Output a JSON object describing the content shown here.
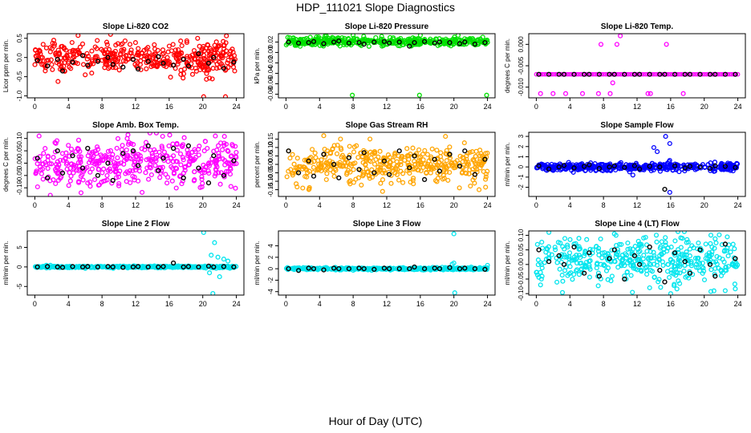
{
  "figure": {
    "title": "HDP_111021  Slope Diagnostics",
    "xlabel": "Hour of Day (UTC)"
  },
  "chart_data": [
    {
      "type": "scatter",
      "title": "Slope Li-820 CO2",
      "ylabel": "Licor ppm per min.",
      "color": "#ff0000",
      "xlim": [
        -0.9,
        24.9
      ],
      "xticks": [
        0,
        4,
        8,
        12,
        16,
        20,
        24
      ],
      "ylim": [
        -1.05,
        0.62
      ],
      "yticks": [
        -1.0,
        -0.5,
        0.0,
        0.5
      ],
      "yticklabels": [
        "-1.0",
        "-0.5",
        "0.0",
        "0.5"
      ],
      "center": 0.0,
      "spread": 0.22,
      "hourly_black": [
        -0.08,
        -0.22,
        -0.05,
        -0.35,
        -0.12,
        0.05,
        -0.2,
        -0.1,
        0.0,
        -0.18,
        -0.25,
        -0.05,
        -0.3,
        -0.1,
        0.02,
        -0.15,
        -0.2,
        -0.05,
        -0.22,
        0.1,
        -0.15,
        0.0,
        -0.28,
        -0.12,
        -0.18
      ],
      "outliers": [
        [
          20.1,
          -1.02
        ],
        [
          22.7,
          -1.02
        ],
        [
          23.8,
          -0.35
        ],
        [
          6.0,
          -0.45
        ]
      ]
    },
    {
      "type": "scatter",
      "title": "Slope Li-820 Pressure",
      "ylabel": "kPa per min.",
      "color": "#00e000",
      "xlim": [
        -0.9,
        24.9
      ],
      "xticks": [
        0,
        4,
        8,
        12,
        16,
        20,
        24
      ],
      "ylim": [
        -0.087,
        0.036
      ],
      "yticks": [
        -0.08,
        -0.06,
        -0.04,
        -0.02,
        0.0,
        0.02
      ],
      "yticklabels": [
        "-0.08",
        "-0.06",
        "-0.04",
        "-0.02",
        "0.00",
        "0.02"
      ],
      "center": 0.021,
      "spread": 0.004,
      "hourly_black": [
        0.02,
        0.018,
        0.019,
        0.021,
        0.017,
        0.02,
        0.022,
        0.018,
        0.019,
        0.016,
        0.02,
        0.021,
        0.018,
        0.02,
        0.012,
        0.019,
        0.021,
        0.018,
        0.02,
        0.019,
        0.017,
        0.02,
        0.016,
        0.019,
        0.018
      ],
      "outliers": [
        [
          7.9,
          -0.082
        ],
        [
          15.9,
          -0.082
        ],
        [
          23.9,
          -0.082
        ],
        [
          8.0,
          0.033
        ],
        [
          16.0,
          0.033
        ],
        [
          20.5,
          0.033
        ]
      ]
    },
    {
      "type": "scatter",
      "title": "Slope Li-820 Temp.",
      "ylabel": "degrees C per min.",
      "color": "#ff00ff",
      "xlim": [
        -0.9,
        24.9
      ],
      "xticks": [
        0,
        4,
        8,
        12,
        16,
        20,
        24
      ],
      "ylim": [
        -0.0125,
        0.0025
      ],
      "yticks": [
        -0.01,
        -0.005,
        0.0
      ],
      "yticklabels": [
        "-0.010",
        "-0.005",
        "0.000"
      ],
      "center": -0.007,
      "spread": 0.0,
      "hourly_black": [
        -0.007,
        -0.007,
        -0.007,
        -0.007,
        -0.007,
        -0.007,
        -0.007,
        -0.007,
        -0.007,
        -0.007,
        -0.007,
        -0.007,
        -0.007,
        -0.007,
        -0.007,
        -0.007,
        -0.007,
        -0.007,
        -0.007,
        -0.007,
        -0.007,
        -0.007,
        -0.007,
        -0.007,
        -0.007
      ],
      "outliers": [
        [
          0.5,
          -0.0115
        ],
        [
          2.0,
          -0.0115
        ],
        [
          3.5,
          -0.0115
        ],
        [
          5.5,
          -0.0115
        ],
        [
          7.4,
          -0.0115
        ],
        [
          7.7,
          0.0
        ],
        [
          8.8,
          -0.0115
        ],
        [
          9.1,
          -0.009
        ],
        [
          9.6,
          0.0
        ],
        [
          10.0,
          0.002
        ],
        [
          13.3,
          -0.0115
        ],
        [
          13.6,
          -0.0115
        ],
        [
          15.5,
          0.0
        ],
        [
          17.5,
          -0.0115
        ]
      ]
    },
    {
      "type": "scatter",
      "title": "Slope Amb. Box Temp.",
      "ylabel": "degrees C per min.",
      "color": "#ff00ff",
      "xlim": [
        -0.9,
        24.9
      ],
      "xticks": [
        0,
        4,
        8,
        12,
        16,
        20,
        24
      ],
      "ylim": [
        -0.135,
        0.125
      ],
      "yticks": [
        -0.1,
        -0.05,
        0.0,
        0.05,
        0.1
      ],
      "yticklabels": [
        "-0.10",
        "-0.05",
        "0.00",
        "0.05",
        "0.10"
      ],
      "center": 0.0,
      "spread": 0.045,
      "hourly_black": [
        0.02,
        -0.06,
        0.05,
        -0.04,
        0.03,
        -0.02,
        0.06,
        -0.05,
        0.0,
        -0.07,
        0.04,
        0.05,
        -0.01,
        0.07,
        -0.03,
        0.02,
        0.06,
        -0.06,
        0.07,
        -0.02,
        -0.08,
        0.03,
        -0.05,
        0.01,
        -0.06
      ],
      "outliers": [
        [
          5.5,
          -0.12
        ],
        [
          0.5,
          0.11
        ],
        [
          11.0,
          0.1
        ],
        [
          21.5,
          0.11
        ]
      ]
    },
    {
      "type": "scatter",
      "title": "Slope Gas Stream RH",
      "ylabel": "percent per min.",
      "color": "#ffa500",
      "xlim": [
        -0.9,
        24.9
      ],
      "xticks": [
        0,
        4,
        8,
        12,
        16,
        20,
        24
      ],
      "ylim": [
        -0.19,
        0.19
      ],
      "yticks": [
        -0.15,
        -0.1,
        -0.05,
        0.0,
        0.05,
        0.1,
        0.15
      ],
      "yticklabels": [
        "-0.15",
        "-0.10",
        "-0.05",
        "0.00",
        "0.05",
        "0.10",
        "0.15"
      ],
      "center": 0.0,
      "spread": 0.055,
      "hourly_black": [
        0.08,
        -0.05,
        0.02,
        -0.07,
        0.06,
        0.0,
        -0.08,
        0.04,
        -0.03,
        0.07,
        -0.05,
        0.02,
        -0.06,
        0.08,
        -0.02,
        0.05,
        -0.09,
        0.03,
        -0.04,
        0.06,
        -0.01,
        0.08,
        -0.06,
        0.03,
        -0.05
      ],
      "outliers": [
        [
          4.5,
          0.17
        ],
        [
          6.5,
          0.15
        ],
        [
          10.0,
          0.15
        ],
        [
          11.5,
          -0.16
        ],
        [
          2.0,
          -0.14
        ],
        [
          23.0,
          -0.15
        ]
      ]
    },
    {
      "type": "scatter",
      "title": "Slope Sample Flow",
      "ylabel": "ml/min per min.",
      "color": "#0000ff",
      "xlim": [
        -0.9,
        24.9
      ],
      "xticks": [
        0,
        4,
        8,
        12,
        16,
        20,
        24
      ],
      "ylim": [
        -2.9,
        3.4
      ],
      "yticks": [
        -2,
        -1,
        0,
        1,
        2,
        3
      ],
      "yticklabels": [
        "-2",
        "-1",
        "0",
        "1",
        "2",
        "3"
      ],
      "center": 0.0,
      "spread": 0.18,
      "hourly_black": [
        0.1,
        -0.2,
        0.0,
        0.15,
        -0.1,
        0.05,
        0.2,
        -0.15,
        0.0,
        0.1,
        -0.05,
        0.12,
        -0.2,
        0.05,
        0.0,
        -2.2,
        0.1,
        -0.1,
        0.05,
        0.0,
        -0.15,
        0.1,
        0.05,
        -0.05,
        0.0
      ],
      "outliers": [
        [
          14.0,
          1.9
        ],
        [
          14.4,
          1.5
        ],
        [
          15.4,
          3.0
        ],
        [
          15.9,
          2.3
        ],
        [
          15.9,
          -2.5
        ],
        [
          11.5,
          -0.8
        ]
      ]
    },
    {
      "type": "scatter",
      "title": "Slope Line 2 Flow",
      "ylabel": "ml/min per min.",
      "color": "#00e5ee",
      "xlim": [
        -0.9,
        24.9
      ],
      "xticks": [
        0,
        4,
        8,
        12,
        16,
        20,
        24
      ],
      "ylim": [
        -7.2,
        9.2
      ],
      "yticks": [
        -5,
        0,
        5
      ],
      "yticklabels": [
        "-5",
        "0",
        "5"
      ],
      "center": 0.0,
      "spread": 0.12,
      "hourly_black": [
        0.0,
        0.1,
        0.0,
        -0.1,
        0.1,
        0.0,
        0.1,
        0.0,
        0.1,
        0.0,
        -0.1,
        0.0,
        0.1,
        0.0,
        0.0,
        0.1,
        1.0,
        0.0,
        0.1,
        0.0,
        0.2,
        0.0,
        0.1,
        0.0,
        0.1
      ],
      "outliers": [
        [
          20.1,
          8.8
        ],
        [
          21.4,
          6.2
        ],
        [
          21.2,
          -6.8
        ],
        [
          21.0,
          3.0
        ],
        [
          21.8,
          2.5
        ],
        [
          22.0,
          -2.5
        ],
        [
          20.8,
          -1.5
        ],
        [
          22.5,
          2.0
        ],
        [
          23.0,
          1.5
        ]
      ]
    },
    {
      "type": "scatter",
      "title": "Slope Line 3 Flow",
      "ylabel": "ml/min per min.",
      "color": "#00e5ee",
      "xlim": [
        -0.9,
        24.9
      ],
      "xticks": [
        0,
        4,
        8,
        12,
        16,
        20,
        24
      ],
      "ylim": [
        -4.6,
        6.6
      ],
      "yticks": [
        -4,
        -2,
        0,
        2,
        4
      ],
      "yticklabels": [
        "-4",
        "-2",
        "0",
        "2",
        "4"
      ],
      "center": 0.0,
      "spread": 0.1,
      "hourly_black": [
        0.0,
        -0.3,
        0.1,
        0.0,
        -0.2,
        0.1,
        0.0,
        0.0,
        0.1,
        0.0,
        -0.1,
        0.1,
        0.0,
        0.0,
        0.0,
        0.3,
        0.0,
        0.1,
        0.0,
        0.2,
        0.0,
        0.1,
        0.0,
        -0.1,
        0.0
      ],
      "outliers": [
        [
          20.0,
          6.1
        ],
        [
          20.0,
          1.0
        ],
        [
          20.1,
          -4.2
        ],
        [
          19.8,
          0.8
        ],
        [
          24.0,
          0.6
        ]
      ]
    },
    {
      "type": "scatter",
      "title": "Slope Line 4 (LT) Flow",
      "ylabel": "ml/min per min.",
      "color": "#00e5ee",
      "xlim": [
        -0.9,
        24.9
      ],
      "xticks": [
        0,
        4,
        8,
        12,
        16,
        20,
        24
      ],
      "ylim": [
        -0.105,
        0.115
      ],
      "yticks": [
        -0.1,
        -0.05,
        0.0,
        0.05,
        0.1
      ],
      "yticklabels": [
        "-0.10",
        "-0.05",
        "0.00",
        "0.05",
        "0.10"
      ],
      "center": 0.02,
      "spread": 0.04,
      "hourly_black": [
        0.05,
        0.01,
        0.03,
        0.0,
        0.06,
        -0.03,
        0.04,
        -0.04,
        0.02,
        0.05,
        -0.05,
        0.03,
        0.0,
        0.06,
        -0.02,
        -0.06,
        0.04,
        0.01,
        -0.03,
        0.05,
        0.0,
        -0.04,
        0.07,
        0.02,
        -0.01
      ],
      "outliers": [
        [
          1.5,
          0.11
        ],
        [
          9.5,
          0.1
        ],
        [
          16.0,
          -0.1
        ],
        [
          22.5,
          -0.09
        ],
        [
          0.5,
          -0.07
        ],
        [
          13.5,
          -0.08
        ]
      ]
    }
  ]
}
